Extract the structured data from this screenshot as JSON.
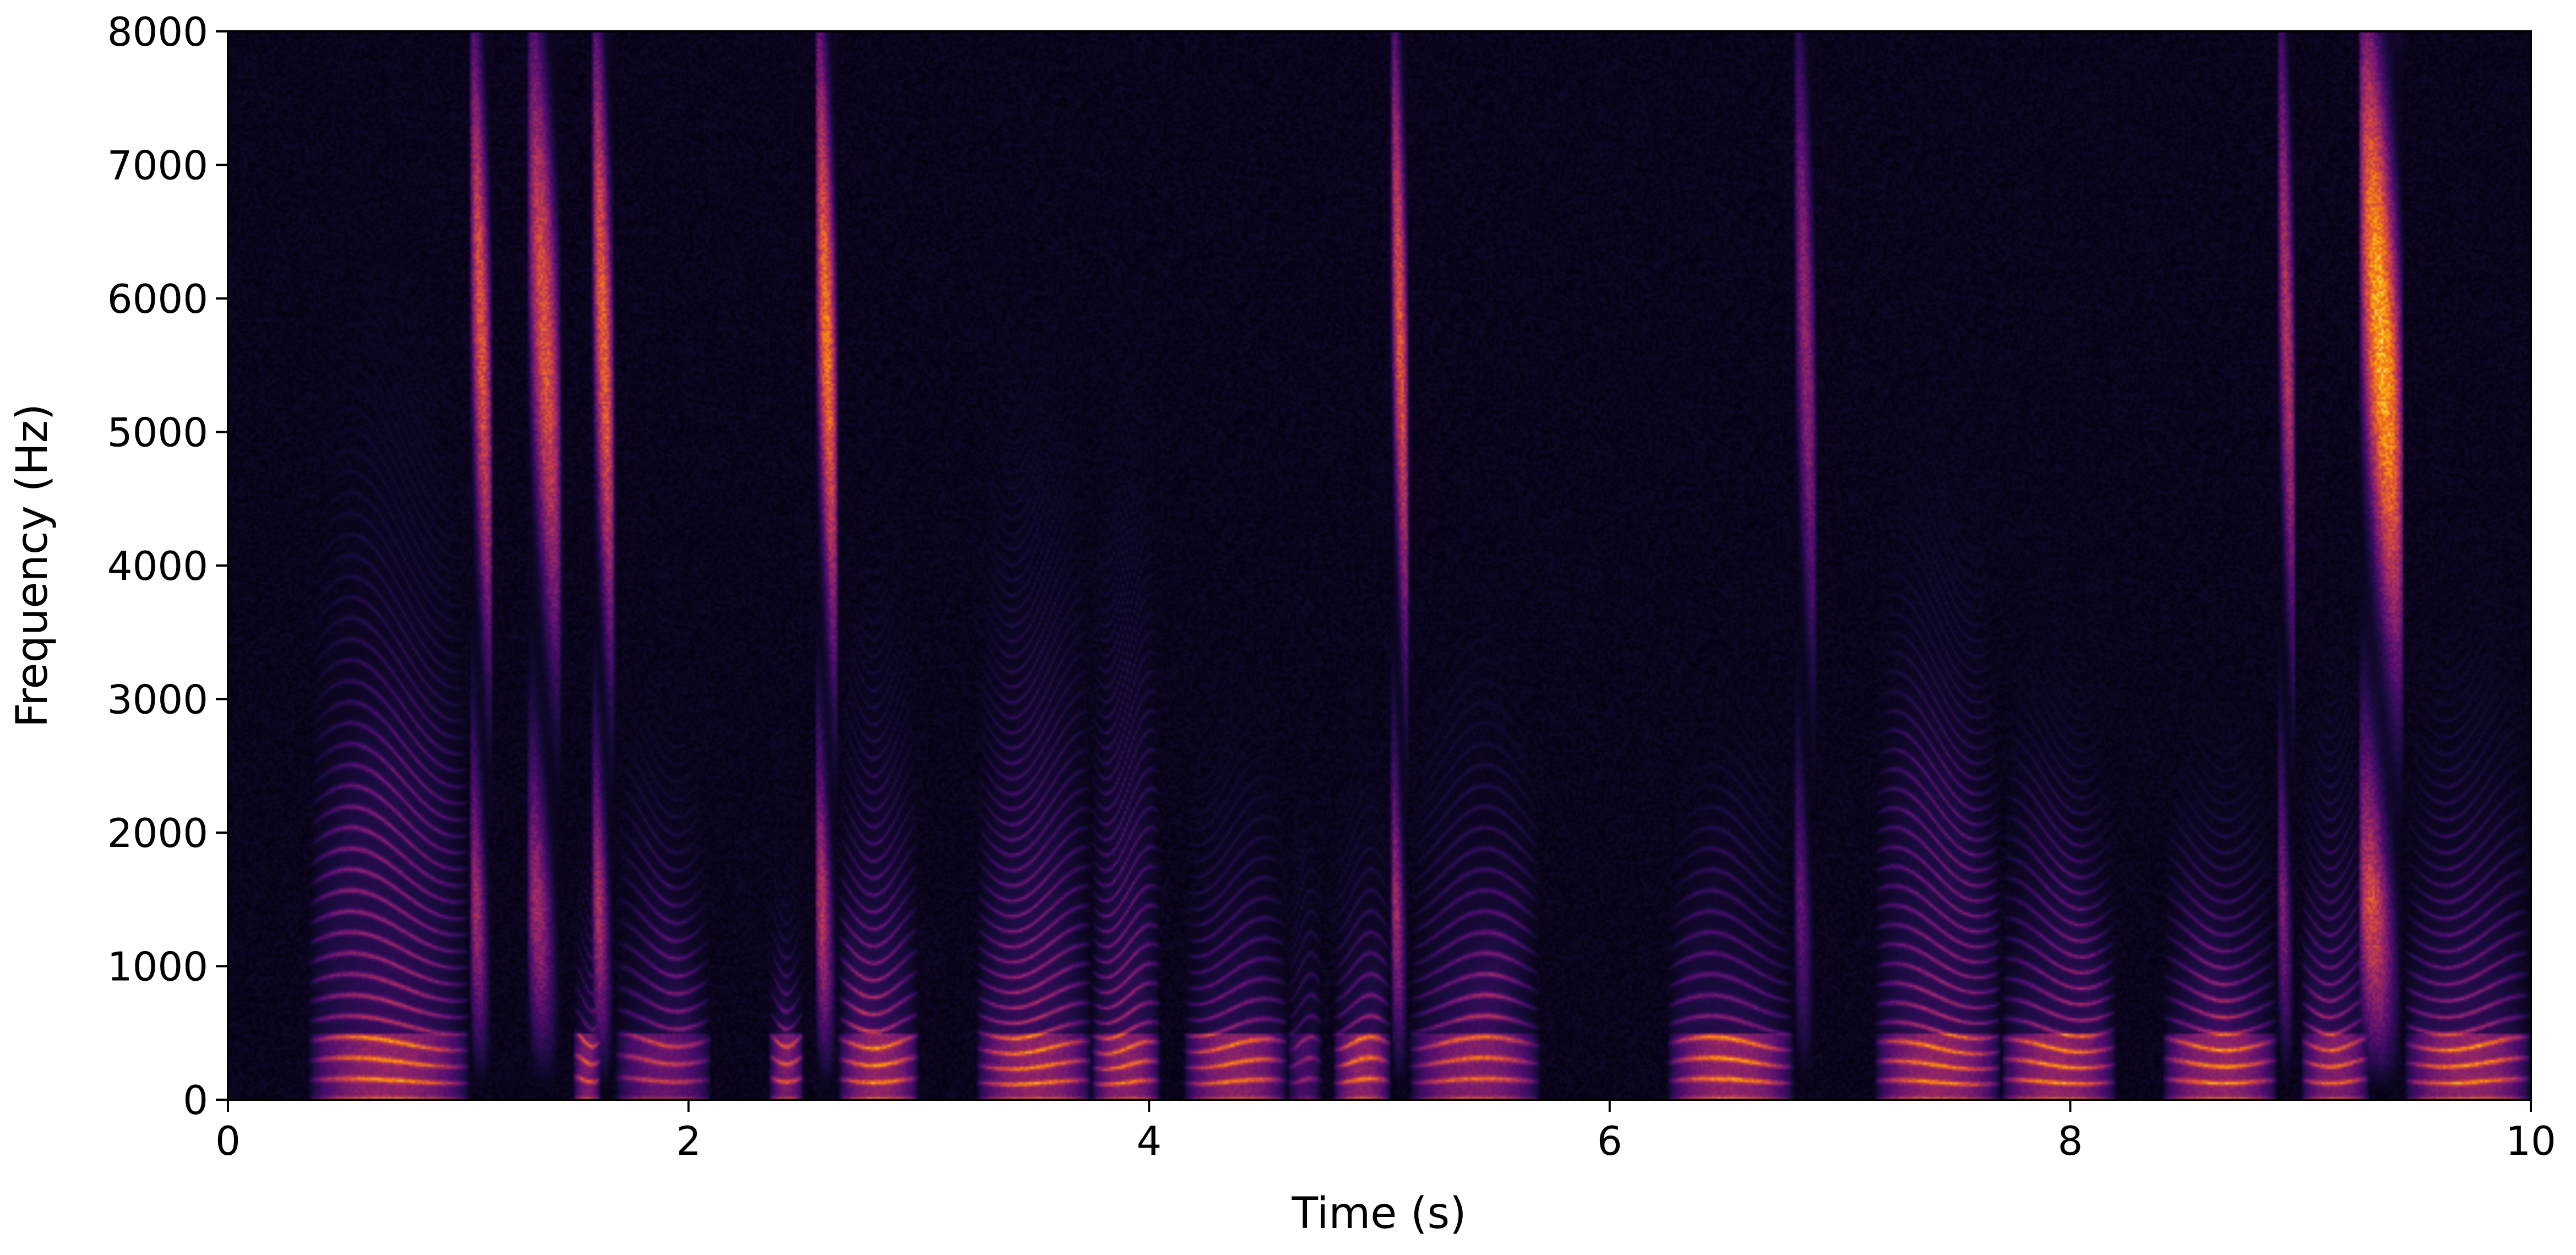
{
  "chart_data": {
    "type": "heatmap",
    "subtype": "spectrogram",
    "title": "",
    "xlabel": "Time (s)",
    "ylabel": "Frequency (Hz)",
    "xlim": [
      0,
      10
    ],
    "ylim": [
      0,
      8000
    ],
    "x_ticks": [
      0,
      2,
      4,
      6,
      8,
      10
    ],
    "y_ticks": [
      0,
      1000,
      2000,
      3000,
      4000,
      5000,
      6000,
      7000,
      8000
    ],
    "x_tick_labels": [
      "0",
      "2",
      "4",
      "6",
      "8",
      "10"
    ],
    "y_tick_labels": [
      "0",
      "1000",
      "2000",
      "3000",
      "4000",
      "5000",
      "6000",
      "7000",
      "8000"
    ],
    "colormap": "inferno",
    "colormap_stops": [
      "#000004",
      "#1b0c41",
      "#4a0c6b",
      "#781c6d",
      "#a52c60",
      "#cf4446",
      "#ed6925",
      "#fb9b06",
      "#f7d13d",
      "#fcffa4"
    ],
    "grid": false,
    "legend": "none",
    "segments": [
      {
        "t0": 0.35,
        "t1": 1.05,
        "peak": 0.95,
        "top": 4500,
        "f0": 140,
        "fricative": 0
      },
      {
        "t0": 1.05,
        "t1": 1.15,
        "peak": 0.7,
        "top": 8000,
        "f0": 0,
        "fricative": 1
      },
      {
        "t0": 1.3,
        "t1": 1.45,
        "peak": 0.7,
        "top": 8000,
        "f0": 0,
        "fricative": 1
      },
      {
        "t0": 1.5,
        "t1": 1.62,
        "peak": 0.8,
        "top": 1500,
        "f0": 150,
        "fricative": 0
      },
      {
        "t0": 1.58,
        "t1": 1.68,
        "peak": 0.75,
        "top": 8000,
        "f0": 0,
        "fricative": 1
      },
      {
        "t0": 1.68,
        "t1": 2.1,
        "peak": 0.7,
        "top": 2600,
        "f0": 150,
        "fricative": 0
      },
      {
        "t0": 2.35,
        "t1": 2.5,
        "peak": 0.8,
        "top": 1500,
        "f0": 150,
        "fricative": 0
      },
      {
        "t0": 2.55,
        "t1": 2.65,
        "peak": 0.8,
        "top": 8000,
        "f0": 0,
        "fricative": 1
      },
      {
        "t0": 2.65,
        "t1": 3.0,
        "peak": 0.95,
        "top": 3200,
        "f0": 145,
        "fricative": 0
      },
      {
        "t0": 3.25,
        "t1": 3.75,
        "peak": 0.95,
        "top": 4300,
        "f0": 130,
        "fricative": 0
      },
      {
        "t0": 3.75,
        "t1": 4.05,
        "peak": 0.9,
        "top": 4300,
        "f0": 130,
        "fricative": 0
      },
      {
        "t0": 4.15,
        "t1": 4.6,
        "peak": 0.9,
        "top": 2300,
        "f0": 135,
        "fricative": 0
      },
      {
        "t0": 4.6,
        "t1": 4.75,
        "peak": 0.5,
        "top": 2500,
        "f0": 140,
        "fricative": 0
      },
      {
        "t0": 4.8,
        "t1": 5.05,
        "peak": 0.9,
        "top": 2000,
        "f0": 140,
        "fricative": 0
      },
      {
        "t0": 5.05,
        "t1": 5.13,
        "peak": 0.7,
        "top": 8000,
        "f0": 0,
        "fricative": 1
      },
      {
        "t0": 5.13,
        "t1": 5.7,
        "peak": 0.85,
        "top": 2800,
        "f0": 140,
        "fricative": 0
      },
      {
        "t0": 6.25,
        "t1": 6.8,
        "peak": 0.95,
        "top": 2000,
        "f0": 140,
        "fricative": 0
      },
      {
        "t0": 6.8,
        "t1": 6.9,
        "peak": 0.45,
        "top": 8000,
        "f0": 0,
        "fricative": 1
      },
      {
        "t0": 7.15,
        "t1": 7.7,
        "peak": 0.95,
        "top": 3800,
        "f0": 130,
        "fricative": 0
      },
      {
        "t0": 7.7,
        "t1": 8.2,
        "peak": 0.95,
        "top": 2600,
        "f0": 135,
        "fricative": 0
      },
      {
        "t0": 8.4,
        "t1": 8.9,
        "peak": 0.95,
        "top": 2200,
        "f0": 140,
        "fricative": 0
      },
      {
        "t0": 8.9,
        "t1": 8.98,
        "peak": 0.55,
        "top": 8000,
        "f0": 0,
        "fricative": 1
      },
      {
        "t0": 9.0,
        "t1": 9.3,
        "peak": 0.85,
        "top": 2800,
        "f0": 140,
        "fricative": 0
      },
      {
        "t0": 9.25,
        "t1": 9.45,
        "peak": 0.95,
        "top": 8000,
        "f0": 0,
        "fricative": 1
      },
      {
        "t0": 9.45,
        "t1": 10.0,
        "peak": 0.95,
        "top": 2800,
        "f0": 140,
        "fricative": 0
      }
    ]
  }
}
